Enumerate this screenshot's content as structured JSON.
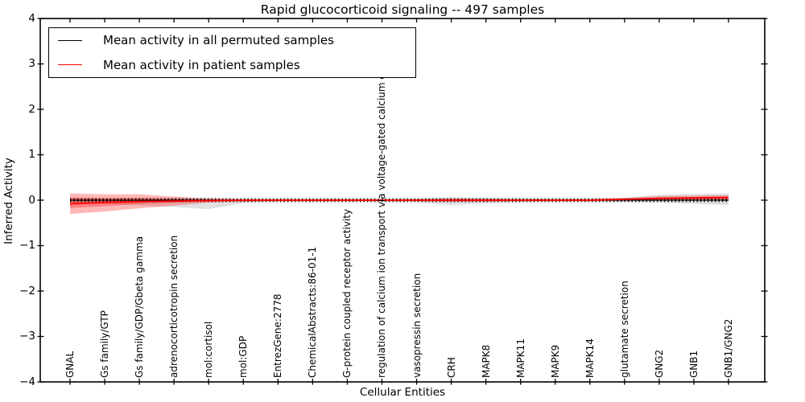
{
  "colors": {
    "background": "#ffffff",
    "axis": "#000000",
    "permuted_line": "#000000",
    "patient_line": "#ff0000",
    "permuted_band": "#999999",
    "patient_band": "#ff0000"
  },
  "chart_data": {
    "type": "line",
    "title": "Rapid glucocorticoid signaling -- 497 samples",
    "xlabel": "Cellular Entities",
    "ylabel": "Inferred Activity",
    "ylim": [
      -4,
      4
    ],
    "yticks": [
      4,
      3,
      2,
      1,
      0,
      -1,
      -2,
      -3,
      -4
    ],
    "grid": false,
    "categories": [
      "GNAL",
      "Gs family/GTP",
      "Gs family/GDP/Gbeta gamma",
      "adrenocorticotropin secretion",
      "mol:cortisol",
      "mol:GDP",
      "EntrezGene:2778",
      "ChemicalAbstracts:86-01-1",
      "G-protein coupled receptor activity",
      "regulation of calcium ion transport via voltage-gated calcium channel",
      "vasopressin secretion",
      "CRH",
      "MAPK8",
      "MAPK11",
      "MAPK9",
      "MAPK14",
      "glutamate secretion",
      "GNG2",
      "GNB1",
      "GNB1/GNG2"
    ],
    "series": [
      {
        "name": "Mean activity in all permuted samples",
        "color": "#000000",
        "line_style": "solid",
        "marker": "|",
        "values": [
          0,
          0,
          0,
          0,
          0,
          0,
          0,
          0,
          0,
          0,
          0,
          0,
          0,
          0,
          0,
          0,
          0,
          0,
          0,
          0
        ]
      },
      {
        "name": "Mean activity in patient samples",
        "color": "#ff0000",
        "line_style": "solid",
        "marker": "none",
        "values": [
          -0.08,
          -0.05,
          -0.03,
          -0.02,
          -0.01,
          0,
          0,
          0,
          0,
          0,
          0,
          0,
          0,
          0,
          0,
          0,
          0.02,
          0.04,
          0.05,
          0.06
        ]
      }
    ],
    "bands": [
      {
        "name": "permuted-samples-range",
        "color": "#999999",
        "opacity": 0.3,
        "upper": [
          0.04,
          0.04,
          0.05,
          0.06,
          0.06,
          0.03,
          0.02,
          0.02,
          0.02,
          0.02,
          0.03,
          0.07,
          0.05,
          0.04,
          0.03,
          0.03,
          0.05,
          0.12,
          0.14,
          0.15
        ],
        "lower": [
          -0.06,
          -0.08,
          -0.12,
          -0.15,
          -0.2,
          -0.06,
          -0.03,
          -0.03,
          -0.03,
          -0.03,
          -0.04,
          -0.11,
          -0.07,
          -0.05,
          -0.03,
          -0.03,
          -0.04,
          -0.05,
          -0.08,
          -0.11
        ]
      },
      {
        "name": "patient-samples-range-outer",
        "color": "#ff0000",
        "opacity": 0.28,
        "upper": [
          0.15,
          0.13,
          0.13,
          0.08,
          0.03,
          0.02,
          0.02,
          0.02,
          0.02,
          0.02,
          0.02,
          0.04,
          0.03,
          0.02,
          0.02,
          0.02,
          0.05,
          0.09,
          0.1,
          0.11
        ],
        "lower": [
          -0.3,
          -0.25,
          -0.18,
          -0.12,
          -0.05,
          -0.03,
          -0.02,
          -0.02,
          -0.02,
          -0.02,
          -0.02,
          -0.04,
          -0.03,
          -0.02,
          -0.02,
          -0.02,
          -0.01,
          0,
          0,
          0
        ]
      },
      {
        "name": "patient-samples-range-inner",
        "color": "#ff0000",
        "opacity": 0.32,
        "upper": [
          0.06,
          0.05,
          0.05,
          0.03,
          0.02,
          0.01,
          0.01,
          0.01,
          0.01,
          0.01,
          0.01,
          0.02,
          0.02,
          0.01,
          0.01,
          0.01,
          0.03,
          0.06,
          0.07,
          0.08
        ],
        "lower": [
          -0.17,
          -0.13,
          -0.08,
          -0.05,
          -0.02,
          -0.01,
          -0.01,
          -0.01,
          -0.01,
          -0.01,
          -0.01,
          -0.02,
          -0.02,
          -0.01,
          -0.01,
          -0.01,
          0,
          0.01,
          0.02,
          0.02
        ]
      }
    ],
    "legend": {
      "position": "upper left",
      "entries": [
        {
          "label": "Mean activity in all permuted samples",
          "color": "#000000",
          "style": "solid"
        },
        {
          "label": "Mean activity in patient samples",
          "color": "#ff0000",
          "style": "solid"
        }
      ]
    }
  }
}
